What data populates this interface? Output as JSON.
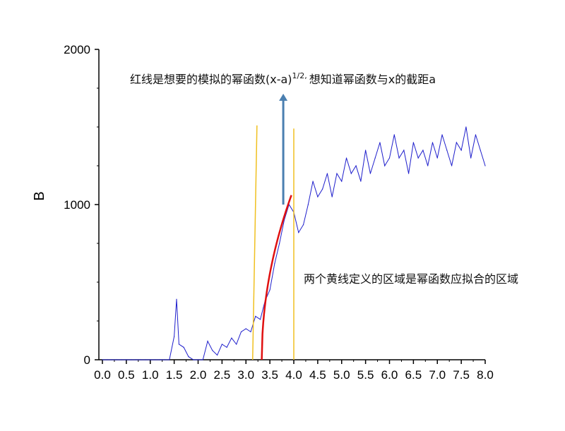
{
  "chart_data": {
    "type": "line",
    "title": "",
    "xlabel": "",
    "ylabel": "B",
    "xlim": [
      0,
      8
    ],
    "ylim": [
      0,
      2000
    ],
    "x_ticks": [
      "0.0",
      "0.5",
      "1.0",
      "1.5",
      "2.0",
      "2.5",
      "3.0",
      "3.5",
      "4.0",
      "4.5",
      "5.0",
      "5.5",
      "6.0",
      "6.5",
      "7.0",
      "7.5",
      "8.0"
    ],
    "y_ticks": [
      "0",
      "1000",
      "2000"
    ],
    "grid": false,
    "series": [
      {
        "color": "#1f1fcc",
        "x": [
          0,
          0.1,
          0.2,
          0.3,
          0.4,
          0.5,
          0.6,
          0.7,
          0.8,
          0.9,
          1.0,
          1.1,
          1.2,
          1.3,
          1.4,
          1.5,
          1.55,
          1.6,
          1.7,
          1.8,
          1.9,
          2.0,
          2.1,
          2.2,
          2.3,
          2.4,
          2.5,
          2.6,
          2.7,
          2.8,
          2.9,
          3.0,
          3.1,
          3.2,
          3.3,
          3.4,
          3.5,
          3.6,
          3.7,
          3.8,
          3.9,
          4.0,
          4.1,
          4.2,
          4.3,
          4.4,
          4.5,
          4.6,
          4.7,
          4.8,
          4.9,
          5.0,
          5.1,
          5.2,
          5.3,
          5.4,
          5.5,
          5.6,
          5.7,
          5.8,
          5.9,
          6.0,
          6.1,
          6.2,
          6.3,
          6.4,
          6.5,
          6.6,
          6.7,
          6.8,
          6.9,
          7.0,
          7.1,
          7.2,
          7.3,
          7.4,
          7.5,
          7.6,
          7.7,
          7.8,
          7.9,
          8.0
        ],
        "y": [
          0,
          0,
          0,
          0,
          0,
          0,
          0,
          0,
          0,
          0,
          0,
          0,
          0,
          0,
          0,
          150,
          390,
          100,
          80,
          20,
          0,
          0,
          0,
          120,
          60,
          30,
          100,
          80,
          140,
          100,
          180,
          200,
          180,
          280,
          260,
          380,
          450,
          620,
          750,
          900,
          1000,
          950,
          820,
          870,
          1000,
          1150,
          1050,
          1100,
          1200,
          1050,
          1200,
          1150,
          1300,
          1200,
          1250,
          1150,
          1350,
          1200,
          1300,
          1400,
          1250,
          1300,
          1450,
          1300,
          1350,
          1200,
          1400,
          1300,
          1350,
          1250,
          1400,
          1300,
          1450,
          1350,
          1250,
          1400,
          1350,
          1500,
          1300,
          1450,
          1350,
          1250
        ]
      }
    ],
    "fit_curve": {
      "color": "#e01010",
      "form": "(x-a)^(1/2)",
      "a": 3.33,
      "k": 1347,
      "x_range": [
        3.33,
        3.95
      ]
    },
    "region_lines": {
      "color": "#f0c020",
      "lines": [
        {
          "x": [
            3.14,
            3.23
          ],
          "y": [
            0,
            1510
          ]
        },
        {
          "x": [
            4.0,
            4.0
          ],
          "y": [
            0,
            1490
          ]
        }
      ]
    },
    "arrow": {
      "color": "#4a7fb0",
      "x": 3.78,
      "y": [
        1000,
        1714
      ]
    },
    "annotations": {
      "top": "红线是想要的模拟的幂函数(x-a)",
      "top_sup": "1/2,",
      "top_rest": "想知道幂函数与x的截距a",
      "right": "两个黄线定义的区域是幂函数应拟合的区域"
    }
  }
}
